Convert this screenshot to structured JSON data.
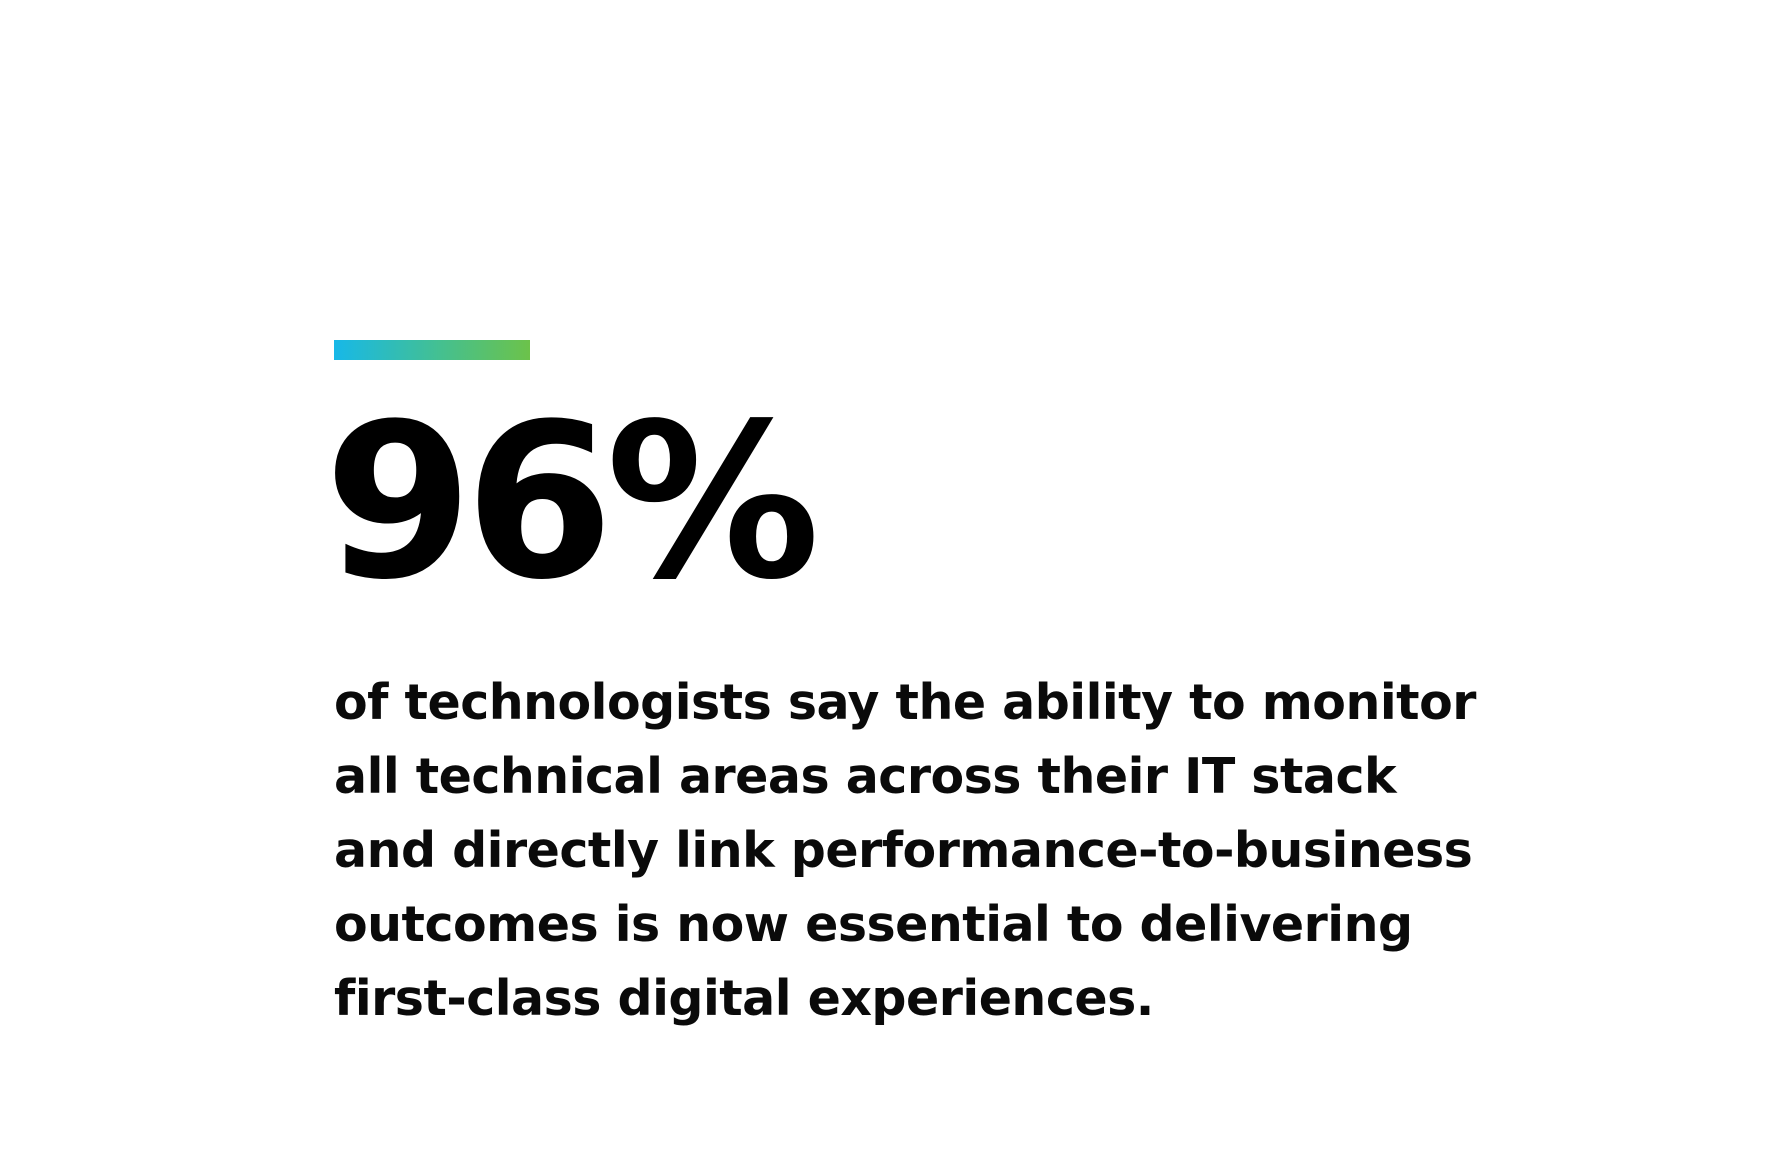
{
  "colors": {
    "background": "#ffffff",
    "text": "#000000",
    "accent_gradient_start": "#17b8e8",
    "accent_gradient_end": "#6cc24a"
  },
  "stat": {
    "value": "96%",
    "description_lines": [
      "of technologists say the ability to monitor",
      "all technical areas across their IT stack",
      "and directly link performance-to-business",
      "outcomes is now essential to delivering",
      "first-class digital experiences."
    ]
  }
}
